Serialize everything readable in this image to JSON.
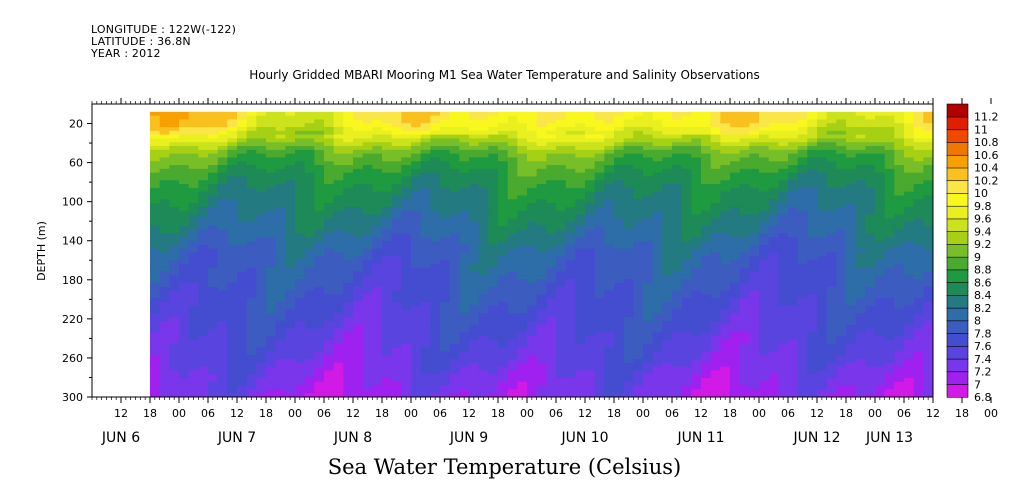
{
  "header": {
    "longitude": "LONGITUDE : 122W(-122)",
    "latitude": "LATITUDE : 36.8N",
    "year": "YEAR : 2012"
  },
  "chart_data": {
    "type": "heatmap",
    "title": "Hourly Gridded MBARI Mooring M1 Sea Water Temperature and Salinity Observations",
    "xlabel": "Sea Water Temperature (Celsius)",
    "ylabel": "DEPTH (m)",
    "ylim": [
      300,
      0
    ],
    "y_ticks": [
      20,
      60,
      100,
      140,
      180,
      220,
      260,
      300
    ],
    "x_hour_ticks": [
      "12",
      "18",
      "00",
      "06",
      "12",
      "18",
      "00",
      "06",
      "12",
      "18",
      "00",
      "06",
      "12",
      "18",
      "00",
      "06",
      "12",
      "18",
      "00",
      "06",
      "12",
      "18",
      "00",
      "06",
      "12",
      "18",
      "00",
      "06",
      "12",
      "18",
      "00",
      "06"
    ],
    "x_day_labels": [
      "JUN  6",
      "JUN  7",
      "JUN  8",
      "JUN  9",
      "JUN 10",
      "JUN 11",
      "JUN 12",
      "JUN 13"
    ],
    "x_range": [
      "2012-06-06 06:00",
      "2012-06-13 12:00"
    ],
    "data_start": "2012-06-06 18:00",
    "colorbar": {
      "levels": [
        "6.8",
        "7",
        "7.2",
        "7.4",
        "7.6",
        "7.8",
        "8",
        "8.2",
        "8.4",
        "8.6",
        "8.8",
        "9",
        "9.2",
        "9.4",
        "9.6",
        "9.8",
        "10",
        "10.2",
        "10.4",
        "10.6",
        "10.8",
        "11",
        "11.2"
      ],
      "colors": [
        "#d21ae6",
        "#a020f0",
        "#7a36ea",
        "#5a44e0",
        "#444cd0",
        "#3c5cc0",
        "#2d6da8",
        "#237a80",
        "#1e8a58",
        "#1f9a40",
        "#4aaa30",
        "#78be28",
        "#a6d014",
        "#cce21c",
        "#eaf020",
        "#f8f81e",
        "#fae646",
        "#fac01e",
        "#f8a000",
        "#f07800",
        "#f04800",
        "#e01e00",
        "#b00000"
      ]
    },
    "profile_depths": [
      10,
      20,
      35,
      50,
      70,
      90,
      110,
      130,
      150,
      180,
      210,
      240,
      260,
      280,
      300
    ],
    "profile_temperatures": [
      10.0,
      9.9,
      9.5,
      9.0,
      8.7,
      8.5,
      8.35,
      8.2,
      8.0,
      7.85,
      7.7,
      7.55,
      7.45,
      7.3,
      7.2
    ]
  }
}
